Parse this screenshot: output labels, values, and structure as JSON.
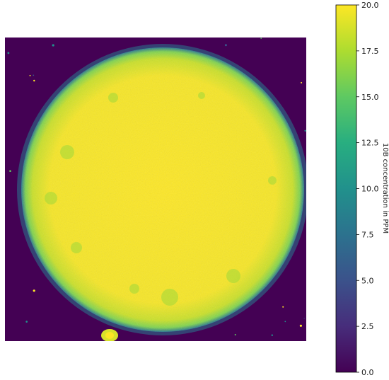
{
  "chart_data": {
    "type": "heatmap",
    "title": "",
    "xlabel": "",
    "ylabel": "",
    "axes_visible": false,
    "colormap": "viridis",
    "colorbar": {
      "label": "10B concentration in PPM",
      "range": [
        0,
        20
      ],
      "ticks": [
        0.0,
        2.5,
        5.0,
        7.5,
        10.0,
        12.5,
        15.0,
        17.5,
        20.0
      ],
      "tick_labels": [
        "0.0",
        "2.5",
        "5.0",
        "7.5",
        "10.0",
        "12.5",
        "15.0",
        "17.5",
        "20.0"
      ],
      "placement": "right"
    },
    "description_values": {
      "disc_inside_value": 20,
      "background_value": 0
    }
  },
  "colors": {
    "background_low": "#440154",
    "high": "#fde725",
    "mid": "#21918c"
  }
}
